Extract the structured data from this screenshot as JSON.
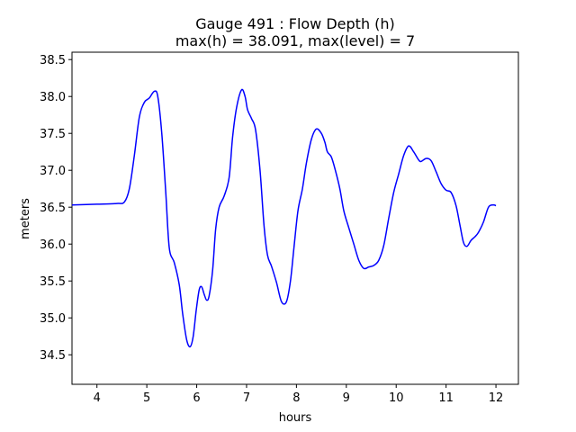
{
  "chart_data": {
    "type": "line",
    "title_line1": "Gauge 491 : Flow Depth (h)",
    "title_line2": "max(h) =  38.091,    max(level) = 7",
    "xlabel": "hours",
    "ylabel": "meters",
    "xlim": [
      3.5,
      12.45
    ],
    "ylim": [
      34.1,
      38.6
    ],
    "xticks": [
      4,
      5,
      6,
      7,
      8,
      9,
      10,
      11,
      12
    ],
    "yticks": [
      34.5,
      35.0,
      35.5,
      36.0,
      36.5,
      37.0,
      37.5,
      38.0,
      38.5
    ],
    "grid": false,
    "line_color": "#0000ff",
    "series": [
      {
        "x": [
          3.5,
          4.0,
          4.4,
          4.55,
          4.65,
          4.75,
          4.85,
          4.95,
          5.05,
          5.15,
          5.22,
          5.3,
          5.38,
          5.45,
          5.55,
          5.65,
          5.72,
          5.8,
          5.87,
          5.93,
          5.99,
          6.05,
          6.1,
          6.15,
          6.2,
          6.25,
          6.32,
          6.38,
          6.45,
          6.55,
          6.65,
          6.72,
          6.8,
          6.9,
          6.97,
          7.02,
          7.1,
          7.18,
          7.27,
          7.35,
          7.42,
          7.5,
          7.6,
          7.7,
          7.8,
          7.88,
          7.95,
          8.03,
          8.12,
          8.2,
          8.3,
          8.4,
          8.5,
          8.57,
          8.62,
          8.7,
          8.78,
          8.87,
          8.95,
          9.05,
          9.15,
          9.25,
          9.35,
          9.45,
          9.55,
          9.65,
          9.75,
          9.85,
          9.95,
          10.05,
          10.15,
          10.25,
          10.35,
          10.45,
          10.5,
          10.6,
          10.7,
          10.8,
          10.9,
          11.0,
          11.1,
          11.2,
          11.28,
          11.35,
          11.42,
          11.5,
          11.58,
          11.65,
          11.75,
          11.85,
          11.95,
          12.0
        ],
        "y": [
          36.53,
          36.54,
          36.55,
          36.57,
          36.75,
          37.2,
          37.72,
          37.92,
          37.98,
          38.07,
          38.0,
          37.5,
          36.7,
          35.95,
          35.75,
          35.45,
          35.05,
          34.7,
          34.61,
          34.75,
          35.1,
          35.38,
          35.42,
          35.32,
          35.24,
          35.3,
          35.65,
          36.2,
          36.5,
          36.65,
          36.9,
          37.45,
          37.85,
          38.09,
          38.0,
          37.82,
          37.7,
          37.55,
          37.0,
          36.25,
          35.85,
          35.7,
          35.48,
          35.22,
          35.22,
          35.5,
          35.95,
          36.45,
          36.75,
          37.1,
          37.42,
          37.56,
          37.5,
          37.38,
          37.25,
          37.18,
          37.0,
          36.75,
          36.45,
          36.22,
          36.0,
          35.78,
          35.67,
          35.69,
          35.71,
          35.78,
          35.98,
          36.35,
          36.7,
          36.95,
          37.2,
          37.33,
          37.25,
          37.14,
          37.12,
          37.16,
          37.13,
          36.98,
          36.82,
          36.73,
          36.7,
          36.52,
          36.25,
          36.02,
          35.97,
          36.05,
          36.1,
          36.16,
          36.3,
          36.5,
          36.53,
          36.52
        ]
      }
    ]
  }
}
